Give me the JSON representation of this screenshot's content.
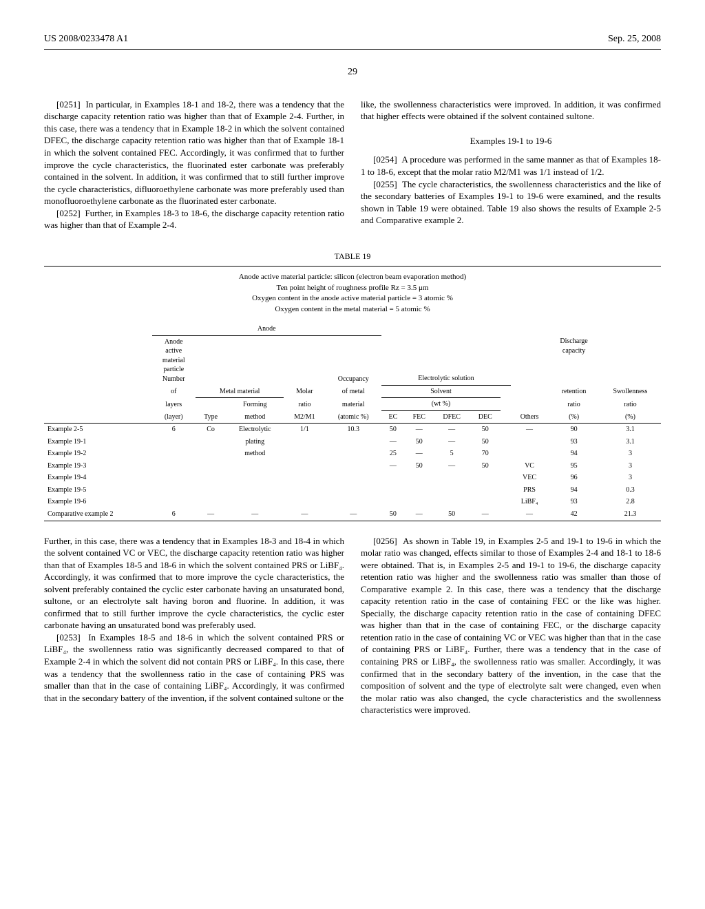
{
  "header": {
    "patent_id": "US 2008/0233478 A1",
    "date": "Sep. 25, 2008"
  },
  "page_number": "29",
  "upper_left": {
    "p0251_num": "[0251]",
    "p0251": "In particular, in Examples 18-1 and 18-2, there was a tendency that the discharge capacity retention ratio was higher than that of Example 2-4. Further, in this case, there was a tendency that in Example 18-2 in which the solvent contained DFEC, the discharge capacity retention ratio was higher than that of Example 18-1 in which the solvent contained FEC. Accordingly, it was confirmed that to further improve the cycle characteristics, the fluorinated ester carbonate was preferably contained in the solvent. In addition, it was confirmed that to still further improve the cycle characteristics, difluoroethylene carbonate was more preferably used than monofluoroethylene carbonate as the fluorinated ester carbonate.",
    "p0252_num": "[0252]",
    "p0252": "Further, in Examples 18-3 to 18-6, the discharge capacity retention ratio was higher than that of Example 2-4."
  },
  "upper_right": {
    "cont": "like, the swollenness characteristics were improved. In addition, it was confirmed that higher effects were obtained if the solvent contained sultone.",
    "examples_heading": "Examples 19-1 to 19-6",
    "p0254_num": "[0254]",
    "p0254": "A procedure was performed in the same manner as that of Examples 18-1 to 18-6, except that the molar ratio M2/M1 was 1/1 instead of 1/2.",
    "p0255_num": "[0255]",
    "p0255": "The cycle characteristics, the swollenness characteristics and the like of the secondary batteries of Examples 19-1 to 19-6 were examined, and the results shown in Table 19 were obtained. Table 19 also shows the results of Example 2-5 and Comparative example 2."
  },
  "table": {
    "title": "TABLE 19",
    "caption_l1": "Anode active material particle: silicon (electron beam evaporation method)",
    "caption_l2": "Ten point height of roughness profile Rz = 3.5 μm",
    "caption_l3": "Oxygen content in the anode active material particle = 3 atomic %",
    "caption_l4": "Oxygen content in the metal material = 5 atomic %",
    "group_anode": "Anode",
    "group_electrolytic": "Electrolytic solution",
    "group_solvent": "Solvent",
    "group_metal": "Metal material",
    "h_particle_l1": "Anode",
    "h_particle_l2": "active",
    "h_particle_l3": "material",
    "h_particle_l4": "particle",
    "h_particle_l5": "Number",
    "h_particle_l6": "of",
    "h_particle_l7": "layers",
    "h_particle_unit": "(layer)",
    "h_type": "Type",
    "h_forming_l1": "Forming",
    "h_forming_l2": "method",
    "h_molar_l1": "Molar",
    "h_molar_l2": "ratio",
    "h_molar_l3": "M2/M1",
    "h_occ_l1": "Occupancy",
    "h_occ_l2": "of metal",
    "h_occ_l3": "material",
    "h_occ_unit": "(atomic %)",
    "h_wt": "(wt %)",
    "h_ec": "EC",
    "h_fec": "FEC",
    "h_dfec": "DFEC",
    "h_dec": "DEC",
    "h_others": "Others",
    "h_disch_l1": "Discharge",
    "h_disch_l2": "capacity",
    "h_disch_l3": "retention",
    "h_disch_l4": "ratio",
    "h_disch_unit": "(%)",
    "h_swoll_l1": "Swollenness",
    "h_swoll_l2": "ratio",
    "h_swoll_unit": "(%)",
    "rows": [
      {
        "label": "Example 2-5",
        "layers": "6",
        "type": "Co",
        "forming": "Electrolytic",
        "molar": "1/1",
        "occ": "10.3",
        "ec": "50",
        "fec": "—",
        "dfec": "—",
        "dec": "50",
        "others": "—",
        "disch": "90",
        "swoll": "3.1"
      },
      {
        "label": "Example 19-1",
        "layers": "",
        "type": "",
        "forming": "plating",
        "molar": "",
        "occ": "",
        "ec": "—",
        "fec": "50",
        "dfec": "—",
        "dec": "50",
        "others": "",
        "disch": "93",
        "swoll": "3.1"
      },
      {
        "label": "Example 19-2",
        "layers": "",
        "type": "",
        "forming": "method",
        "molar": "",
        "occ": "",
        "ec": "25",
        "fec": "—",
        "dfec": "5",
        "dec": "70",
        "others": "",
        "disch": "94",
        "swoll": "3"
      },
      {
        "label": "Example 19-3",
        "layers": "",
        "type": "",
        "forming": "",
        "molar": "",
        "occ": "",
        "ec": "—",
        "fec": "50",
        "dfec": "—",
        "dec": "50",
        "others": "VC",
        "disch": "95",
        "swoll": "3"
      },
      {
        "label": "Example 19-4",
        "layers": "",
        "type": "",
        "forming": "",
        "molar": "",
        "occ": "",
        "ec": "",
        "fec": "",
        "dfec": "",
        "dec": "",
        "others": "VEC",
        "disch": "96",
        "swoll": "3"
      },
      {
        "label": "Example 19-5",
        "layers": "",
        "type": "",
        "forming": "",
        "molar": "",
        "occ": "",
        "ec": "",
        "fec": "",
        "dfec": "",
        "dec": "",
        "others": "PRS",
        "disch": "94",
        "swoll": "0.3"
      },
      {
        "label": "Example 19-6",
        "layers": "",
        "type": "",
        "forming": "",
        "molar": "",
        "occ": "",
        "ec": "",
        "fec": "",
        "dfec": "",
        "dec": "",
        "others": "LiBF₄",
        "disch": "93",
        "swoll": "2.8"
      },
      {
        "label": "Comparative example 2",
        "layers": "6",
        "type": "—",
        "forming": "—",
        "molar": "—",
        "occ": "—",
        "ec": "50",
        "fec": "—",
        "dfec": "50",
        "dec": "—",
        "others": "—",
        "disch": "42",
        "swoll": "21.3"
      }
    ]
  },
  "lower_left": {
    "p1": "Further, in this case, there was a tendency that in Examples 18-3 and 18-4 in which the solvent contained VC or VEC, the discharge capacity retention ratio was higher than that of Examples 18-5 and 18-6 in which the solvent contained PRS or LiBF₄. Accordingly, it was confirmed that to more improve the cycle characteristics, the solvent preferably contained the cyclic ester carbonate having an unsaturated bond, sultone, or an electrolyte salt having boron and fluorine. In addition, it was confirmed that to still further improve the cycle characteristics, the cyclic ester carbonate having an unsaturated bond was preferably used.",
    "p0253_num": "[0253]",
    "p0253": "In Examples 18-5 and 18-6 in which the solvent contained PRS or LiBF₄, the swollenness ratio was significantly decreased compared to that of Example 2-4 in which the solvent did not contain PRS or LiBF₄. In this case, there was a tendency that the swollenness ratio in the case of containing PRS was smaller than that in the case of containing LiBF₄. Accordingly, it was confirmed that in the secondary battery of the invention, if the solvent contained sultone or the"
  },
  "lower_right": {
    "p0256_num": "[0256]",
    "p0256": "As shown in Table 19, in Examples 2-5 and 19-1 to 19-6 in which the molar ratio was changed, effects similar to those of Examples 2-4 and 18-1 to 18-6 were obtained. That is, in Examples 2-5 and 19-1 to 19-6, the discharge capacity retention ratio was higher and the swollenness ratio was smaller than those of Comparative example 2. In this case, there was a tendency that the discharge capacity retention ratio in the case of containing FEC or the like was higher. Specially, the discharge capacity retention ratio in the case of containing DFEC was higher than that in the case of containing FEC, or the discharge capacity retention ratio in the case of containing VC or VEC was higher than that in the case of containing PRS or LiBF₄. Further, there was a tendency that in the case of containing PRS or LiBF₄, the swollenness ratio was smaller. Accordingly, it was confirmed that in the secondary battery of the invention, in the case that the composition of solvent and the type of electrolyte salt were changed, even when the molar ratio was also changed, the cycle characteristics and the swollenness characteristics were improved."
  }
}
